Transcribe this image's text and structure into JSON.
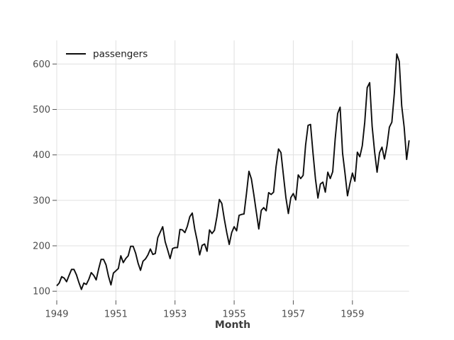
{
  "chart_data": {
    "type": "line",
    "title": "",
    "xlabel": "Month",
    "ylabel": "",
    "legend": [
      "passengers"
    ],
    "legend_position": "upper-left-inside",
    "grid": true,
    "x": {
      "start": "1949-01",
      "end": "1960-12",
      "step": "1 month",
      "num_points": 144
    },
    "x_tick_labels": [
      "1949",
      "1951",
      "1953",
      "1955",
      "1957",
      "1959"
    ],
    "x_tick_month_indices": [
      0,
      24,
      48,
      72,
      96,
      120
    ],
    "y_ticks": [
      100,
      200,
      300,
      400,
      500,
      600
    ],
    "xlim_months": [
      0,
      143
    ],
    "ylim": [
      80,
      652
    ],
    "series": [
      {
        "name": "passengers",
        "values": [
          112,
          118,
          132,
          129,
          121,
          135,
          148,
          148,
          136,
          119,
          104,
          118,
          115,
          126,
          141,
          135,
          125,
          149,
          170,
          170,
          158,
          133,
          114,
          140,
          145,
          150,
          178,
          163,
          172,
          178,
          199,
          199,
          184,
          162,
          146,
          166,
          171,
          180,
          193,
          181,
          183,
          218,
          230,
          242,
          209,
          191,
          172,
          194,
          196,
          196,
          236,
          235,
          229,
          243,
          264,
          272,
          237,
          211,
          180,
          201,
          204,
          188,
          235,
          227,
          234,
          264,
          302,
          293,
          259,
          229,
          203,
          229,
          242,
          233,
          267,
          269,
          270,
          315,
          364,
          347,
          312,
          274,
          237,
          278,
          284,
          277,
          317,
          313,
          318,
          374,
          413,
          405,
          355,
          306,
          271,
          306,
          315,
          301,
          356,
          348,
          355,
          422,
          465,
          467,
          404,
          347,
          305,
          336,
          340,
          318,
          362,
          348,
          363,
          435,
          491,
          505,
          404,
          359,
          310,
          337,
          360,
          342,
          406,
          396,
          420,
          472,
          548,
          559,
          463,
          407,
          362,
          405,
          417,
          391,
          419,
          461,
          472,
          535,
          622,
          606,
          508,
          461,
          390,
          432
        ]
      }
    ],
    "colors": {
      "background": "#ffffff",
      "grid": "#e0e0e0",
      "tick": "#555555",
      "tick_label": "#4d4d4d",
      "axis_title": "#3d3d3d",
      "line": "#0d0d0d",
      "legend_text": "#1a1a1a"
    }
  }
}
